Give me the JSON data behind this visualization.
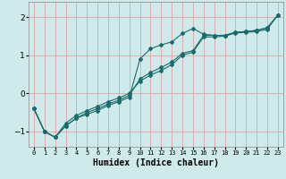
{
  "title": "",
  "xlabel": "Humidex (Indice chaleur)",
  "ylabel": "",
  "bg_color": "#ceeaea",
  "line_color": "#1a6b6b",
  "grid_color": "#e8a0a0",
  "xlim": [
    -0.5,
    23.5
  ],
  "ylim": [
    -1.4,
    2.4
  ],
  "yticks": [
    -1,
    0,
    1,
    2
  ],
  "xticks": [
    0,
    1,
    2,
    3,
    4,
    5,
    6,
    7,
    8,
    9,
    10,
    11,
    12,
    13,
    14,
    15,
    16,
    17,
    18,
    19,
    20,
    21,
    22,
    23
  ],
  "line1_x": [
    0,
    1,
    2,
    3,
    4,
    5,
    6,
    7,
    8,
    9,
    10,
    11,
    12,
    13,
    14,
    15,
    16,
    17,
    18,
    19,
    20,
    21,
    22,
    23
  ],
  "line1_y": [
    -0.4,
    -1.0,
    -1.15,
    -0.85,
    -0.65,
    -0.55,
    -0.45,
    -0.32,
    -0.22,
    -0.1,
    0.9,
    1.17,
    1.27,
    1.35,
    1.57,
    1.7,
    1.55,
    1.52,
    1.52,
    1.6,
    1.62,
    1.65,
    1.72,
    2.05
  ],
  "line2_x": [
    0,
    1,
    2,
    3,
    4,
    5,
    6,
    7,
    8,
    9,
    10,
    11,
    12,
    13,
    14,
    15,
    16,
    17,
    18,
    19,
    20,
    21,
    22,
    23
  ],
  "line2_y": [
    -0.4,
    -1.0,
    -1.15,
    -0.85,
    -0.65,
    -0.5,
    -0.4,
    -0.28,
    -0.18,
    -0.05,
    0.38,
    0.55,
    0.68,
    0.82,
    1.05,
    1.12,
    1.52,
    1.52,
    1.52,
    1.6,
    1.62,
    1.65,
    1.72,
    2.05
  ],
  "line3_x": [
    0,
    1,
    2,
    3,
    4,
    5,
    6,
    7,
    8,
    9,
    10,
    11,
    12,
    13,
    14,
    15,
    16,
    17,
    18,
    19,
    20,
    21,
    22,
    23
  ],
  "line3_y": [
    -0.4,
    -1.0,
    -1.15,
    -0.78,
    -0.58,
    -0.45,
    -0.34,
    -0.22,
    -0.12,
    0.0,
    0.32,
    0.48,
    0.6,
    0.75,
    1.0,
    1.08,
    1.48,
    1.48,
    1.5,
    1.58,
    1.6,
    1.62,
    1.68,
    2.05
  ],
  "marker": "D",
  "markersize": 2,
  "linewidth": 0.8,
  "xlabel_fontsize": 7,
  "ytick_fontsize": 6.5,
  "xtick_fontsize": 5
}
